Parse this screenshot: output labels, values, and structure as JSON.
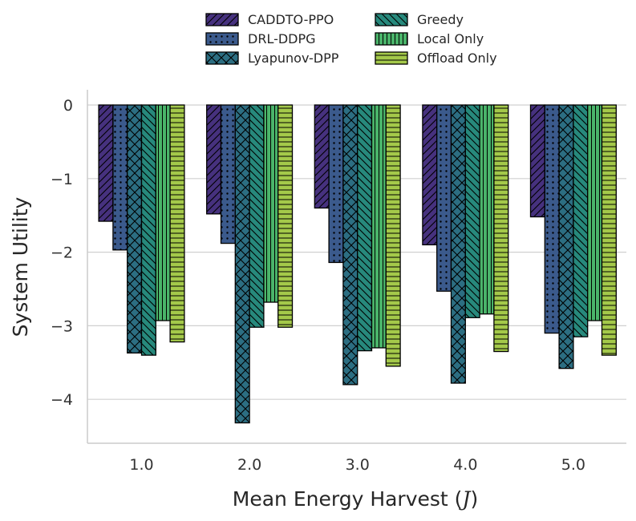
{
  "chart_data": {
    "type": "bar",
    "title": "",
    "xlabel": "Mean Energy Harvest (J)",
    "xlabel_main": "Mean Energy Harvest (",
    "xlabel_unit": "J",
    "xlabel_close": ")",
    "ylabel": "System Utility",
    "ylim": [
      -4.6,
      0.2
    ],
    "yticks": [
      0,
      -1,
      -2,
      -3,
      -4
    ],
    "ytick_labels": [
      "0",
      "−1",
      "−2",
      "−3",
      "−4"
    ],
    "categories": [
      "1.0",
      "2.0",
      "3.0",
      "4.0",
      "5.0"
    ],
    "grid": true,
    "legend_position": "top-center",
    "series": [
      {
        "name": "CADDTO-PPO",
        "color": "#46317e",
        "hatch": "diagonal",
        "values": [
          -1.58,
          -1.48,
          -1.4,
          -1.9,
          -1.52
        ]
      },
      {
        "name": "DRL-DDPG",
        "color": "#3b5a8c",
        "hatch": "dots",
        "values": [
          -1.97,
          -1.88,
          -2.14,
          -2.53,
          -3.1
        ]
      },
      {
        "name": "Lyapunov-DPP",
        "color": "#2c6e82",
        "hatch": "cross",
        "values": [
          -3.37,
          -4.32,
          -3.8,
          -3.78,
          -3.58
        ]
      },
      {
        "name": "Greedy",
        "color": "#27897c",
        "hatch": "backdiagonal",
        "values": [
          -3.4,
          -3.02,
          -3.34,
          -2.89,
          -3.15
        ]
      },
      {
        "name": "Local Only",
        "color": "#4ab46a",
        "hatch": "vertical",
        "values": [
          -2.93,
          -2.68,
          -3.3,
          -2.84,
          -2.93
        ]
      },
      {
        "name": "Offload Only",
        "color": "#a4c94a",
        "hatch": "horizontal",
        "values": [
          -3.22,
          -3.02,
          -3.55,
          -3.35,
          -3.4
        ]
      }
    ]
  }
}
